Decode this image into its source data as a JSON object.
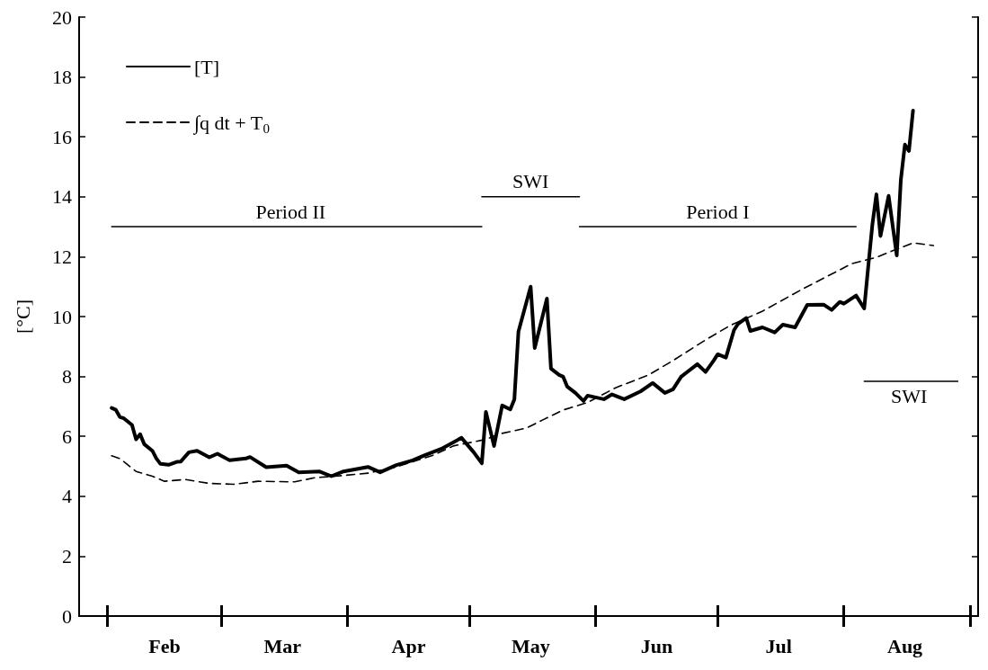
{
  "chart_data": {
    "type": "line",
    "ylabel": "[°C]",
    "xlim": [
      "--01-25",
      "--09-03"
    ],
    "xticks": [
      {
        "value": "--02-01",
        "label": null
      },
      {
        "value": "--02-15",
        "label": "Feb"
      },
      {
        "value": "--03-01",
        "label": null
      },
      {
        "value": "--03-16",
        "label": "Mar"
      },
      {
        "value": "--04-01",
        "label": null
      },
      {
        "value": "--04-16",
        "label": "Apr"
      },
      {
        "value": "--05-01",
        "label": null
      },
      {
        "value": "--05-16",
        "label": "May"
      },
      {
        "value": "--06-01",
        "label": null
      },
      {
        "value": "--06-16",
        "label": "Jun"
      },
      {
        "value": "--07-01",
        "label": null
      },
      {
        "value": "--07-16",
        "label": "Jul"
      },
      {
        "value": "--08-01",
        "label": null
      },
      {
        "value": "--08-16",
        "label": "Aug"
      },
      {
        "value": "--09-01",
        "label": null
      }
    ],
    "ylim": [
      0,
      20
    ],
    "yticks": [
      0,
      2,
      4,
      6,
      8,
      10,
      12,
      14,
      16,
      18,
      20
    ],
    "legend": "top left",
    "annotations": [
      {
        "text": "Period II",
        "x": "--03-18",
        "y": 13
      },
      {
        "text": "SWI",
        "x": "--05-16",
        "y": 14
      },
      {
        "text": "Period I",
        "x": "--07-01",
        "y": 13
      },
      {
        "text": "SWI",
        "x": "--08-17",
        "y": 7.84
      }
    ],
    "series": [
      {
        "color": "#000000",
        "line_style": "solid",
        "x": [
          "--02-02",
          "--05-04"
        ],
        "values": [
          13,
          13
        ]
      },
      {
        "color": "#000000",
        "line_style": "solid",
        "x": [
          "--05-04",
          "--05-28"
        ],
        "values": [
          14,
          14
        ]
      },
      {
        "color": "#000000",
        "line_style": "solid",
        "x": [
          "--05-28",
          "--08-04"
        ],
        "values": [
          13,
          13
        ]
      },
      {
        "color": "#000000",
        "line_style": "solid",
        "x": [
          "--08-06",
          "--08-29"
        ],
        "values": [
          7.84,
          7.84
        ]
      },
      {
        "name": "[T]",
        "color": "#000000",
        "line_style": "solid",
        "x": [
          "--02-02",
          "--02-03",
          "--02-04",
          "--02-05",
          "--02-07",
          "--02-08",
          "--02-09",
          "--02-10",
          "--02-12",
          "--02-13",
          "--02-14",
          "--02-16",
          "--02-18",
          "--02-19",
          "--02-21",
          "--02-23",
          "--02-26",
          "--02-28",
          "--03-03",
          "--03-07",
          "--03-08",
          "--03-12",
          "--03-17",
          "--03-20",
          "--03-25",
          "--03-28",
          "--03-31",
          "--04-06",
          "--04-09",
          "--04-13",
          "--04-17",
          "--04-20",
          "--04-24",
          "--04-29",
          "--05-02",
          "--05-04",
          "--05-05",
          "--05-07",
          "--05-09",
          "--05-11",
          "--05-12",
          "--05-13",
          "--05-16",
          "--05-17",
          "--05-20",
          "--05-21",
          "--05-23",
          "--05-24",
          "--05-25",
          "--05-27",
          "--05-29",
          "--05-30",
          "--06-03",
          "--06-05",
          "--06-08",
          "--06-12",
          "--06-15",
          "--06-18",
          "--06-20",
          "--06-22",
          "--06-26",
          "--06-28",
          "--06-30",
          "--07-01",
          "--07-03",
          "--07-05",
          "--07-06",
          "--07-08",
          "--07-09",
          "--07-12",
          "--07-15",
          "--07-17",
          "--07-20",
          "--07-23",
          "--07-27",
          "--07-29",
          "--07-31",
          "--08-01",
          "--08-04",
          "--08-06",
          "--08-07",
          "--08-08",
          "--08-09",
          "--08-10",
          "--08-12",
          "--08-14",
          "--08-15",
          "--08-16",
          "--08-17",
          "--08-18"
        ],
        "values": [
          6.95,
          6.89,
          6.65,
          6.6,
          6.38,
          5.9,
          6.07,
          5.74,
          5.52,
          5.26,
          5.08,
          5.05,
          5.15,
          5.16,
          5.47,
          5.52,
          5.3,
          5.42,
          5.2,
          5.26,
          5.31,
          4.97,
          5.02,
          4.8,
          4.83,
          4.67,
          4.83,
          4.98,
          4.8,
          5.04,
          5.2,
          5.37,
          5.58,
          5.95,
          5.47,
          5.1,
          6.82,
          5.68,
          7.03,
          6.9,
          7.24,
          9.5,
          11.0,
          8.95,
          10.6,
          8.26,
          8.05,
          7.99,
          7.66,
          7.45,
          7.18,
          7.36,
          7.24,
          7.4,
          7.24,
          7.5,
          7.78,
          7.45,
          7.57,
          7.99,
          8.41,
          8.15,
          8.53,
          8.74,
          8.63,
          9.55,
          9.76,
          9.95,
          9.52,
          9.64,
          9.47,
          9.73,
          9.64,
          10.39,
          10.4,
          10.22,
          10.49,
          10.43,
          10.7,
          10.27,
          11.68,
          13.06,
          14.08,
          12.69,
          14.03,
          12.04,
          14.56,
          15.74,
          15.53,
          16.88
        ]
      },
      {
        "name": "∫q dt + T$_{0}$",
        "color": "#000000",
        "line_style": "dashed",
        "x": [
          "--02-02",
          "--02-04",
          "--02-08",
          "--02-12",
          "--02-15",
          "--02-20",
          "--02-26",
          "--03-04",
          "--03-10",
          "--03-19",
          "--03-24",
          "--03-29",
          "--04-06",
          "--04-13",
          "--04-22",
          "--04-27",
          "--05-05",
          "--05-08",
          "--05-15",
          "--05-19",
          "--05-24",
          "--05-30",
          "--06-06",
          "--06-14",
          "--06-20",
          "--06-28",
          "--07-04",
          "--07-12",
          "--07-22",
          "--07-28",
          "--08-03",
          "--08-09",
          "--08-14",
          "--08-18",
          "--08-23"
        ],
        "values": [
          5.35,
          5.26,
          4.83,
          4.67,
          4.5,
          4.56,
          4.43,
          4.4,
          4.5,
          4.48,
          4.62,
          4.67,
          4.77,
          4.98,
          5.37,
          5.68,
          5.9,
          6.07,
          6.28,
          6.55,
          6.88,
          7.13,
          7.63,
          8.05,
          8.53,
          9.22,
          9.7,
          10.18,
          10.93,
          11.35,
          11.77,
          11.98,
          12.25,
          12.46,
          12.37
        ]
      }
    ]
  }
}
